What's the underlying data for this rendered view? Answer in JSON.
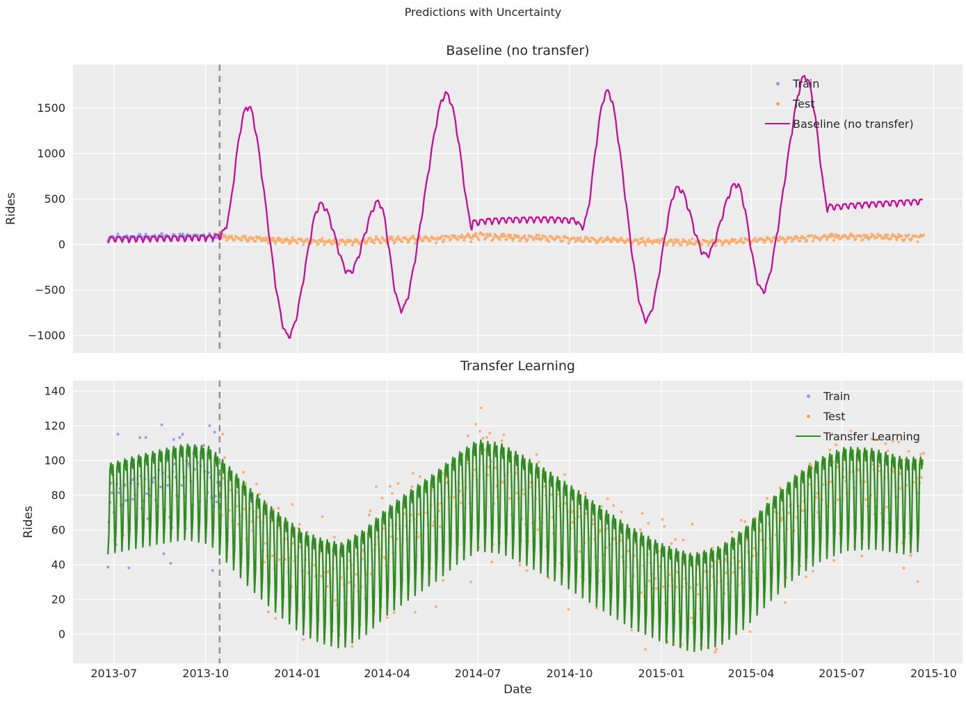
{
  "figure": {
    "title": "Predictions with Uncertainty",
    "xlabel": "Date"
  },
  "colors": {
    "plot_bg": "#ececec",
    "grid": "#ffffff",
    "text": "#262626",
    "split_line": "#8c8c8c",
    "train": "#7878e0",
    "test": "#ff7f0e",
    "baseline_line": "#c20d97",
    "transfer_line": "#2e8b1f"
  },
  "x_axis": {
    "range": [
      "2013-05-21",
      "2015-10-30"
    ],
    "tick_dates": [
      "2013-07-01",
      "2013-10-01",
      "2014-01-01",
      "2014-04-01",
      "2014-07-01",
      "2014-10-01",
      "2015-01-01",
      "2015-04-01",
      "2015-07-01",
      "2015-10-01"
    ],
    "tick_labels": [
      "2013-07",
      "2013-10",
      "2014-01",
      "2014-04",
      "2014-07",
      "2014-10",
      "2015-01",
      "2015-04",
      "2015-07",
      "2015-10"
    ],
    "split_date": "2013-10-15"
  },
  "rides_pattern": {
    "weekly_shape": [
      0.85,
      1.0,
      0.75,
      0.95,
      0.2,
      -1.0,
      -0.55
    ],
    "mid_keypoints": [
      [
        "2013-06-25",
        72
      ],
      [
        "2013-07-15",
        75
      ],
      [
        "2013-08-15",
        79
      ],
      [
        "2013-09-10",
        82
      ],
      [
        "2013-10-05",
        80
      ],
      [
        "2013-10-25",
        68
      ],
      [
        "2013-11-15",
        55
      ],
      [
        "2013-12-10",
        42
      ],
      [
        "2014-01-05",
        30
      ],
      [
        "2014-01-25",
        25
      ],
      [
        "2014-02-15",
        22
      ],
      [
        "2014-03-10",
        30
      ],
      [
        "2014-04-01",
        42
      ],
      [
        "2014-04-25",
        52
      ],
      [
        "2014-05-20",
        62
      ],
      [
        "2014-06-10",
        72
      ],
      [
        "2014-07-01",
        80
      ],
      [
        "2014-07-25",
        78
      ],
      [
        "2014-08-15",
        72
      ],
      [
        "2014-09-05",
        65
      ],
      [
        "2014-10-01",
        56
      ],
      [
        "2014-11-01",
        44
      ],
      [
        "2014-12-01",
        33
      ],
      [
        "2015-01-01",
        24
      ],
      [
        "2015-02-01",
        18
      ],
      [
        "2015-03-01",
        22
      ],
      [
        "2015-03-25",
        32
      ],
      [
        "2015-04-20",
        48
      ],
      [
        "2015-05-15",
        62
      ],
      [
        "2015-06-10",
        72
      ],
      [
        "2015-07-05",
        78
      ],
      [
        "2015-08-01",
        78
      ],
      [
        "2015-09-01",
        74
      ],
      [
        "2015-09-20",
        75
      ]
    ],
    "amp_keypoints": [
      [
        "2013-06-25",
        26
      ],
      [
        "2014-01-15",
        30
      ],
      [
        "2014-07-01",
        32
      ],
      [
        "2015-01-15",
        28
      ],
      [
        "2015-07-01",
        30
      ],
      [
        "2015-09-20",
        27
      ]
    ]
  },
  "chart_data": [
    {
      "type": "line",
      "title": "Baseline (no transfer)",
      "ylabel": "Rides",
      "ylim": [
        -1191,
        1977
      ],
      "ytick_values": [
        1500,
        1000,
        500,
        0,
        -500,
        -1000
      ],
      "ytick_labels": [
        "1500",
        "1000",
        "500",
        "0",
        "−500",
        "−1000"
      ],
      "series": [
        {
          "name": "Train",
          "type": "scatter"
        },
        {
          "name": "Test",
          "type": "scatter"
        },
        {
          "name": "Baseline (no transfer)",
          "type": "line",
          "color": "#c20d97",
          "weekly_ripple": 35,
          "keypoints": [
            [
              "2013-06-25",
              50
            ],
            [
              "2013-07-15",
              55
            ],
            [
              "2013-08-10",
              58
            ],
            [
              "2013-09-05",
              62
            ],
            [
              "2013-10-01",
              68
            ],
            [
              "2013-10-14",
              85
            ],
            [
              "2013-10-17",
              110
            ],
            [
              "2013-10-24",
              300
            ],
            [
              "2013-11-15",
              1480
            ],
            [
              "2013-12-21",
              -1000
            ],
            [
              "2014-01-23",
              420
            ],
            [
              "2014-02-22",
              -320
            ],
            [
              "2014-03-24",
              450
            ],
            [
              "2014-04-18",
              -700
            ],
            [
              "2014-05-28",
              1630
            ],
            [
              "2014-06-22",
              300
            ],
            [
              "2014-06-27",
              235
            ],
            [
              "2014-07-10",
              250
            ],
            [
              "2014-08-01",
              262
            ],
            [
              "2014-08-25",
              268
            ],
            [
              "2014-09-15",
              268
            ],
            [
              "2014-10-05",
              258
            ],
            [
              "2014-10-18",
              300
            ],
            [
              "2014-11-10",
              1650
            ],
            [
              "2014-12-15",
              -820
            ],
            [
              "2015-01-16",
              600
            ],
            [
              "2015-02-15",
              -130
            ],
            [
              "2015-03-18",
              650
            ],
            [
              "2015-04-15",
              -500
            ],
            [
              "2015-05-23",
              1820
            ],
            [
              "2015-06-14",
              520
            ],
            [
              "2015-06-19",
              410
            ],
            [
              "2015-07-10",
              420
            ],
            [
              "2015-08-01",
              435
            ],
            [
              "2015-08-25",
              450
            ],
            [
              "2015-09-20",
              465
            ]
          ]
        }
      ]
    },
    {
      "type": "line",
      "title": "Transfer Learning",
      "ylabel": "Rides",
      "ylim": [
        -16.8,
        146
      ],
      "ytick_values": [
        140,
        120,
        100,
        80,
        60,
        40,
        20,
        0
      ],
      "ytick_labels": [
        "140",
        "120",
        "100",
        "80",
        "60",
        "40",
        "20",
        "0"
      ],
      "series": [
        {
          "name": "Train",
          "type": "scatter",
          "color": "#7878e0",
          "opacity": 0.7,
          "date_range": [
            "2013-06-25",
            "2013-10-14"
          ],
          "step_days": 1,
          "noise_sd": 11,
          "weekly_factor": 0.75,
          "seed": 11
        },
        {
          "name": "Test",
          "type": "scatter",
          "color": "#ff7f0e",
          "opacity": 0.55,
          "date_range": [
            "2013-10-15",
            "2015-09-21"
          ],
          "step_days": 1,
          "noise_sd": 11,
          "weekly_factor": 0.75,
          "seed": 7
        },
        {
          "name": "Transfer Learning",
          "type": "line",
          "color": "#2e8b1f",
          "follows_rides_pattern": true
        }
      ]
    }
  ]
}
